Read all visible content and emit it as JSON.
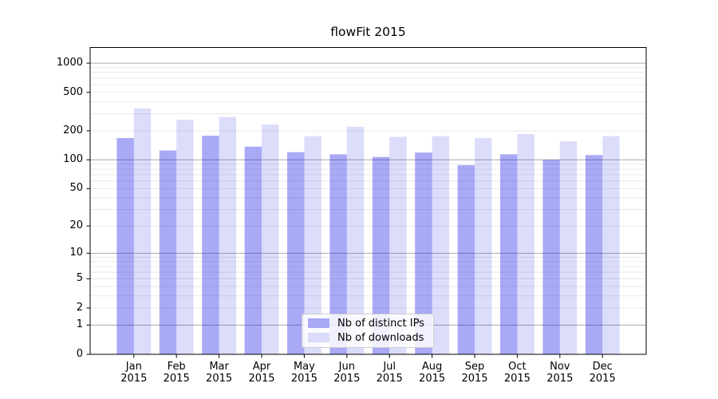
{
  "figure": {
    "background": "#ffffff"
  },
  "chart_data": {
    "type": "bar",
    "title": "flowFit 2015",
    "categories": [
      "Jan",
      "Feb",
      "Mar",
      "Apr",
      "May",
      "Jun",
      "Jul",
      "Aug",
      "Sep",
      "Oct",
      "Nov",
      "Dec"
    ],
    "category_year": "2015",
    "series": [
      {
        "name": "Nb of distinct IPs",
        "bar_color": "rgba(10,10,230,0.35)",
        "legend_color": "#a9a9f6",
        "values": [
          168,
          125,
          178,
          137,
          120,
          114,
          107,
          119,
          88,
          114,
          100,
          112
        ]
      },
      {
        "name": "Nb of downloads",
        "bar_color": "rgba(10,10,230,0.14)",
        "legend_color": "#dbdbfb",
        "values": [
          340,
          260,
          278,
          232,
          176,
          220,
          173,
          176,
          168,
          185,
          156,
          176
        ]
      }
    ],
    "yscale": "log1p",
    "ylim": [
      0,
      1450
    ],
    "yticks": [
      0,
      1,
      2,
      5,
      10,
      20,
      50,
      100,
      200,
      500,
      1000
    ],
    "grid": {
      "major_ticks": [
        1,
        10,
        100,
        1000
      ],
      "major_color": "#ababab",
      "minor_color": "#e8e8e8"
    },
    "legend": {
      "position": "lower center"
    },
    "text_color": "#000000",
    "spine_color": "#000000"
  }
}
